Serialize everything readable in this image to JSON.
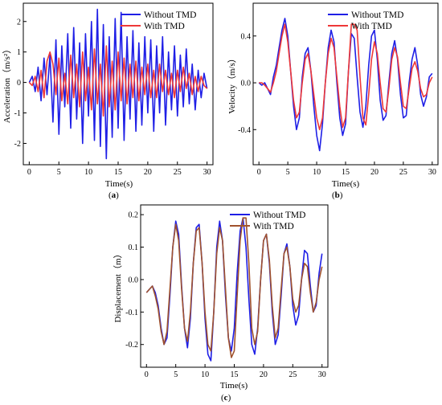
{
  "chart_data": [
    {
      "type": "line",
      "panel": "a",
      "caption": "(a)",
      "xlabel": "Time(s)",
      "ylabel": "Acceleration（m/s²）",
      "xlim": [
        -1,
        31
      ],
      "ylim": [
        -2.7,
        2.6
      ],
      "xticks": [
        0,
        5,
        10,
        15,
        20,
        25,
        30
      ],
      "yticks": [
        -2,
        -1,
        0,
        1,
        2
      ],
      "legend_position": "top-right",
      "colors": {
        "Without TMD": "#1f1fe6",
        "With TMD": "#ee3838"
      },
      "series": [
        {
          "name": "Without TMD",
          "x": [
            0,
            0.5,
            1,
            1.5,
            2,
            2.5,
            3,
            3.5,
            4,
            4.5,
            5,
            5.5,
            6,
            6.5,
            7,
            7.5,
            8,
            8.5,
            9,
            9.5,
            10,
            10.5,
            11,
            11.5,
            12,
            12.5,
            13,
            13.5,
            14,
            14.5,
            15,
            15.5,
            16,
            16.5,
            17,
            17.5,
            18,
            18.5,
            19,
            19.5,
            20,
            20.5,
            21,
            21.5,
            22,
            22.5,
            23,
            23.5,
            24,
            24.5,
            25,
            25.5,
            26,
            26.5,
            27,
            27.5,
            28,
            28.5,
            29,
            29.5,
            30
          ],
          "y": [
            0,
            0.2,
            -0.3,
            0.5,
            -0.6,
            0.8,
            -0.4,
            0.9,
            -1.3,
            1.4,
            -1.7,
            1.2,
            -0.8,
            1.6,
            -1.5,
            1.8,
            -1.2,
            1.3,
            -2.0,
            1.6,
            -1.1,
            2.0,
            -1.9,
            2.4,
            -2.1,
            1.9,
            -2.5,
            1.5,
            -1.8,
            2.1,
            -1.5,
            2.3,
            -1.9,
            1.5,
            -1.2,
            1.7,
            -1.6,
            1.3,
            -1.4,
            1.5,
            -1.0,
            1.4,
            -1.6,
            1.2,
            -1.0,
            1.5,
            -1.4,
            1.0,
            -0.9,
            1.2,
            -1.1,
            0.9,
            -0.8,
            1.1,
            -0.7,
            0.6,
            -0.9,
            0.4,
            -0.5,
            0.3,
            -0.2
          ]
        },
        {
          "name": "With TMD",
          "x": [
            0,
            0.5,
            1,
            1.5,
            2,
            2.5,
            3,
            3.5,
            4,
            4.5,
            5,
            5.5,
            6,
            6.5,
            7,
            7.5,
            8,
            8.5,
            9,
            9.5,
            10,
            10.5,
            11,
            11.5,
            12,
            12.5,
            13,
            13.5,
            14,
            14.5,
            15,
            15.5,
            16,
            16.5,
            17,
            17.5,
            18,
            18.5,
            19,
            19.5,
            20,
            20.5,
            21,
            21.5,
            22,
            22.5,
            23,
            23.5,
            24,
            24.5,
            25,
            25.5,
            26,
            26.5,
            27,
            27.5,
            28,
            28.5,
            29,
            29.5,
            30
          ],
          "y": [
            0,
            -0.1,
            0.2,
            -0.3,
            0.4,
            -0.5,
            0.7,
            1.0,
            0.6,
            -0.4,
            0.8,
            -0.6,
            0.3,
            -0.7,
            0.9,
            -0.5,
            0.6,
            -0.8,
            1.0,
            -0.6,
            0.5,
            -0.9,
            1.1,
            -0.7,
            0.6,
            -1.1,
            1.2,
            -0.8,
            0.7,
            -0.9,
            1.0,
            -0.6,
            0.8,
            -0.7,
            0.6,
            -0.5,
            0.7,
            -0.6,
            0.5,
            -0.4,
            0.6,
            -0.5,
            0.4,
            -0.5,
            0.6,
            -0.3,
            0.4,
            -0.4,
            0.3,
            -0.5,
            0.4,
            -0.3,
            0.5,
            -0.2,
            0.3,
            -0.4,
            0.2,
            -0.3,
            0.2,
            -0.1,
            -0.2
          ]
        }
      ]
    },
    {
      "type": "line",
      "panel": "b",
      "caption": "(b)",
      "xlabel": "Time(s)",
      "ylabel": "Velocity（m/s）",
      "xlim": [
        -1,
        31
      ],
      "ylim": [
        -0.7,
        0.68
      ],
      "xticks": [
        0,
        5,
        10,
        15,
        20,
        25,
        30
      ],
      "yticks": [
        -0.4,
        0.0,
        0.4
      ],
      "ytick_labels": [
        "-0.4",
        "0.0",
        "0.4"
      ],
      "legend_position": "top-right",
      "colors": {
        "Without TMD": "#1f1fe6",
        "With TMD": "#ee3838"
      },
      "series": [
        {
          "name": "Without TMD",
          "x": [
            0,
            0.5,
            1,
            1.5,
            2,
            2.5,
            3,
            3.5,
            4,
            4.5,
            5,
            5.5,
            6,
            6.5,
            7,
            7.5,
            8,
            8.5,
            9,
            9.5,
            10,
            10.5,
            11,
            11.5,
            12,
            12.5,
            13,
            13.5,
            14,
            14.5,
            15,
            15.5,
            16,
            16.5,
            17,
            17.5,
            18,
            18.5,
            19,
            19.5,
            20,
            20.5,
            21,
            21.5,
            22,
            22.5,
            23,
            23.5,
            24,
            24.5,
            25,
            25.5,
            26,
            26.5,
            27,
            27.5,
            28,
            28.5,
            29,
            29.5,
            30
          ],
          "y": [
            0,
            -0.02,
            0.0,
            -0.05,
            -0.1,
            0.05,
            0.15,
            0.3,
            0.45,
            0.55,
            0.4,
            0.1,
            -0.2,
            -0.4,
            -0.3,
            0.05,
            0.25,
            0.3,
            0.1,
            -0.2,
            -0.45,
            -0.58,
            -0.35,
            0.0,
            0.3,
            0.45,
            0.35,
            0.0,
            -0.3,
            -0.45,
            -0.35,
            0.1,
            0.42,
            0.38,
            0.05,
            -0.25,
            -0.38,
            -0.2,
            0.15,
            0.4,
            0.45,
            0.2,
            -0.15,
            -0.32,
            -0.28,
            0.0,
            0.25,
            0.36,
            0.2,
            -0.1,
            -0.3,
            -0.28,
            0.0,
            0.2,
            0.3,
            0.15,
            -0.1,
            -0.2,
            -0.12,
            0.05,
            0.08
          ]
        },
        {
          "name": "With TMD",
          "x": [
            0,
            0.5,
            1,
            1.5,
            2,
            2.5,
            3,
            3.5,
            4,
            4.5,
            5,
            5.5,
            6,
            6.5,
            7,
            7.5,
            8,
            8.5,
            9,
            9.5,
            10,
            10.5,
            11,
            11.5,
            12,
            12.5,
            13,
            13.5,
            14,
            14.5,
            15,
            15.5,
            16,
            16.5,
            17,
            17.5,
            18,
            18.5,
            19,
            19.5,
            20,
            20.5,
            21,
            21.5,
            22,
            22.5,
            23,
            23.5,
            24,
            24.5,
            25,
            25.5,
            26,
            26.5,
            27,
            27.5,
            28,
            28.5,
            29,
            29.5,
            30
          ],
          "y": [
            0,
            0.0,
            -0.02,
            -0.05,
            -0.08,
            0.0,
            0.1,
            0.25,
            0.4,
            0.5,
            0.35,
            0.1,
            -0.15,
            -0.3,
            -0.25,
            0.0,
            0.2,
            0.25,
            0.1,
            -0.1,
            -0.3,
            -0.4,
            -0.3,
            0.0,
            0.25,
            0.38,
            0.3,
            0.05,
            -0.2,
            -0.38,
            -0.3,
            0.1,
            0.5,
            0.5,
            0.45,
            0.05,
            -0.3,
            -0.36,
            -0.1,
            0.2,
            0.35,
            0.25,
            0.0,
            -0.22,
            -0.25,
            -0.05,
            0.2,
            0.3,
            0.22,
            0.0,
            -0.2,
            -0.22,
            -0.05,
            0.12,
            0.18,
            0.1,
            -0.05,
            -0.12,
            -0.1,
            0.0,
            0.05
          ]
        }
      ]
    },
    {
      "type": "line",
      "panel": "c",
      "caption": "(c)",
      "xlabel": "Time(s)",
      "ylabel": "Displacement（m）",
      "xlim": [
        -1,
        31
      ],
      "ylim": [
        -0.27,
        0.23
      ],
      "xticks": [
        0,
        5,
        10,
        15,
        20,
        25,
        30
      ],
      "yticks": [
        -0.2,
        -0.1,
        0.0,
        0.1,
        0.2
      ],
      "ytick_labels": [
        "-0.2",
        "-0.1",
        "0.0",
        "0.1",
        "0.2"
      ],
      "legend_position": "top-right",
      "colors": {
        "Without TMD": "#1f1fe6",
        "With TMD": "#a0522d"
      },
      "series": [
        {
          "name": "Without TMD",
          "x": [
            0,
            0.5,
            1,
            1.5,
            2,
            2.5,
            3,
            3.5,
            4,
            4.5,
            5,
            5.5,
            6,
            6.5,
            7,
            7.5,
            8,
            8.5,
            9,
            9.5,
            10,
            10.5,
            11,
            11.5,
            12,
            12.5,
            13,
            13.5,
            14,
            14.5,
            15,
            15.5,
            16,
            16.5,
            17,
            17.5,
            18,
            18.5,
            19,
            19.5,
            20,
            20.5,
            21,
            21.5,
            22,
            22.5,
            23,
            23.5,
            24,
            24.5,
            25,
            25.5,
            26,
            26.5,
            27,
            27.5,
            28,
            28.5,
            29,
            29.5,
            30
          ],
          "y": [
            -0.04,
            -0.03,
            -0.02,
            -0.04,
            -0.08,
            -0.15,
            -0.2,
            -0.18,
            -0.05,
            0.1,
            0.18,
            0.14,
            -0.02,
            -0.15,
            -0.21,
            -0.12,
            0.05,
            0.16,
            0.17,
            0.05,
            -0.12,
            -0.23,
            -0.25,
            -0.1,
            0.1,
            0.18,
            0.12,
            -0.05,
            -0.18,
            -0.22,
            -0.15,
            0.02,
            0.15,
            0.19,
            0.1,
            -0.06,
            -0.2,
            -0.23,
            -0.15,
            0.0,
            0.12,
            0.14,
            0.05,
            -0.1,
            -0.2,
            -0.17,
            -0.05,
            0.08,
            0.11,
            0.04,
            -0.08,
            -0.14,
            -0.11,
            0.0,
            0.09,
            0.08,
            -0.02,
            -0.1,
            -0.08,
            0.02,
            0.08
          ]
        },
        {
          "name": "With TMD",
          "x": [
            0,
            0.5,
            1,
            1.5,
            2,
            2.5,
            3,
            3.5,
            4,
            4.5,
            5,
            5.5,
            6,
            6.5,
            7,
            7.5,
            8,
            8.5,
            9,
            9.5,
            10,
            10.5,
            11,
            11.5,
            12,
            12.5,
            13,
            13.5,
            14,
            14.5,
            15,
            15.5,
            16,
            16.5,
            17,
            17.5,
            18,
            18.5,
            19,
            19.5,
            20,
            20.5,
            21,
            21.5,
            22,
            22.5,
            23,
            23.5,
            24,
            24.5,
            25,
            25.5,
            26,
            26.5,
            27,
            27.5,
            28,
            28.5,
            29,
            29.5,
            30
          ],
          "y": [
            -0.04,
            -0.03,
            -0.02,
            -0.05,
            -0.09,
            -0.16,
            -0.2,
            -0.16,
            -0.03,
            0.1,
            0.17,
            0.12,
            -0.03,
            -0.15,
            -0.19,
            -0.1,
            0.05,
            0.15,
            0.16,
            0.05,
            -0.1,
            -0.2,
            -0.22,
            -0.1,
            0.08,
            0.16,
            0.12,
            -0.03,
            -0.18,
            -0.24,
            -0.22,
            -0.05,
            0.12,
            0.19,
            0.19,
            0.05,
            -0.15,
            -0.2,
            -0.16,
            0.0,
            0.12,
            0.14,
            0.06,
            -0.08,
            -0.18,
            -0.15,
            -0.03,
            0.08,
            0.1,
            0.04,
            -0.06,
            -0.1,
            -0.08,
            0.0,
            0.05,
            0.04,
            -0.04,
            -0.1,
            -0.07,
            0.0,
            0.04
          ]
        }
      ]
    }
  ]
}
